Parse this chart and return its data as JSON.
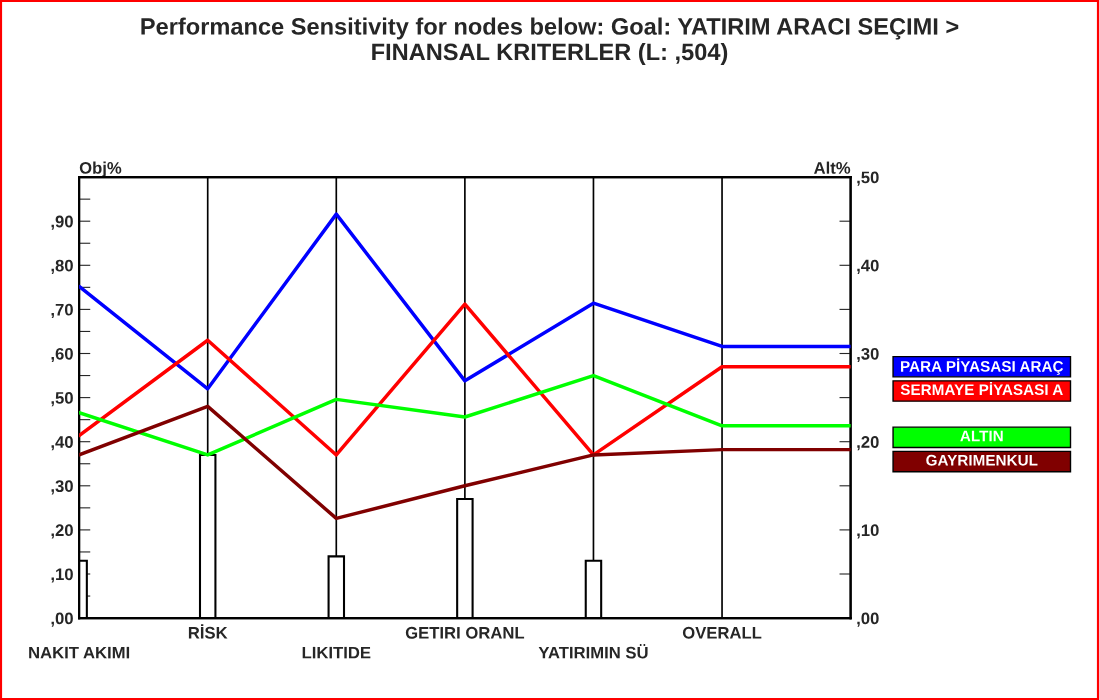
{
  "chart_data": {
    "type": "line",
    "title": "Performance Sensitivity for nodes below: Goal: YATIRIM ARACI SEÇIMI >\nFINANSAL KRITERLER (L: ,504)",
    "ylabel": "Obj%",
    "y2label": "Alt%",
    "categories": [
      "NAKIT AKIMI",
      "RİSK",
      "LIKITIDE",
      "GETIRI ORANL",
      "YATIRIMIN SÜ",
      "OVERALL",
      null
    ],
    "series": [
      {
        "type": "bar",
        "axis": "y",
        "color": "#ffffff",
        "values": [
          13,
          37,
          14,
          27,
          13,
          null,
          null
        ]
      },
      {
        "name": "PARA PİYASASI ARAÇ",
        "axis": "y2",
        "color": "#0000ff",
        "values": [
          37.6,
          26.0,
          45.8,
          26.9,
          35.7,
          30.8,
          30.8
        ]
      },
      {
        "name": "SERMAYE PİYASASI A",
        "axis": "y2",
        "color": "#ff0000",
        "values": [
          20.7,
          31.5,
          18.5,
          35.6,
          18.5,
          28.5,
          28.5
        ]
      },
      {
        "name": "ALTIN",
        "axis": "y2",
        "color": "#00ff00",
        "values": [
          23.3,
          18.5,
          24.8,
          22.8,
          27.5,
          21.8,
          21.8
        ]
      },
      {
        "name": "GAYRIMENKUL",
        "axis": "y2",
        "color": "#800000",
        "values": [
          18.5,
          24.0,
          11.3,
          15.0,
          18.5,
          19.1,
          19.1
        ]
      }
    ],
    "ylim": [
      0,
      100
    ],
    "yticks": [
      {
        "value": 0,
        "label": ",00"
      },
      {
        "value": 5,
        "label": null
      },
      {
        "value": 10,
        "label": ",10"
      },
      {
        "value": 15,
        "label": null
      },
      {
        "value": 20,
        "label": ",20"
      },
      {
        "value": 25,
        "label": null
      },
      {
        "value": 30,
        "label": ",30"
      },
      {
        "value": 35,
        "label": null
      },
      {
        "value": 40,
        "label": ",40"
      },
      {
        "value": 45,
        "label": null
      },
      {
        "value": 50,
        "label": ",50"
      },
      {
        "value": 55,
        "label": null
      },
      {
        "value": 60,
        "label": ",60"
      },
      {
        "value": 65,
        "label": null
      },
      {
        "value": 70,
        "label": ",70"
      },
      {
        "value": 75,
        "label": null
      },
      {
        "value": 80,
        "label": ",80"
      },
      {
        "value": 85,
        "label": null
      },
      {
        "value": 90,
        "label": ",90"
      },
      {
        "value": 95,
        "label": null
      }
    ],
    "y2lim": [
      0,
      50
    ],
    "y2ticks": [
      {
        "value": 0,
        "label": ",00"
      },
      {
        "value": 5,
        "label": null
      },
      {
        "value": 10,
        "label": ",10"
      },
      {
        "value": 15,
        "label": null
      },
      {
        "value": 20,
        "label": ",20"
      },
      {
        "value": 25,
        "label": null
      },
      {
        "value": 30,
        "label": ",30"
      },
      {
        "value": 35,
        "label": null
      },
      {
        "value": 40,
        "label": ",40"
      },
      {
        "value": 45,
        "label": null
      },
      {
        "value": 50,
        "label": ",50"
      }
    ],
    "grid": "x",
    "legend": "right",
    "marker": "none",
    "line_style": "solid"
  }
}
